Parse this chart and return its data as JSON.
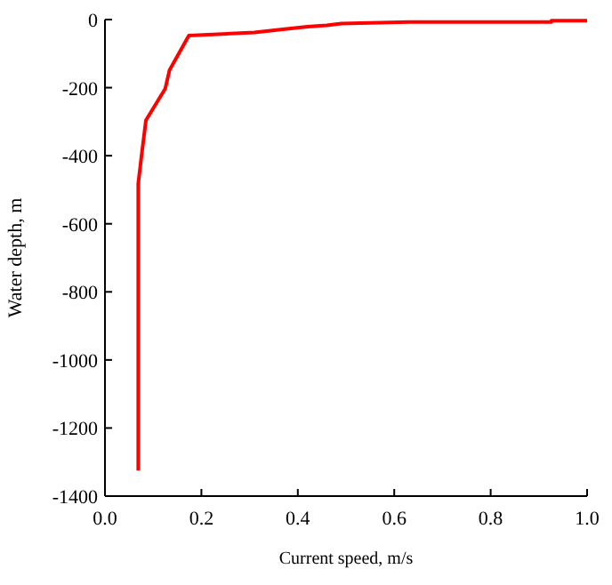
{
  "chart_data": {
    "type": "line",
    "xlabel": "Current speed, m/s",
    "ylabel": "Water depth, m",
    "xlim": [
      0,
      1
    ],
    "xticks": [
      {
        "value": 0,
        "label": "0.0"
      },
      {
        "value": 0.2,
        "label": "0.2"
      },
      {
        "value": 0.4,
        "label": "0.4"
      },
      {
        "value": 0.6,
        "label": "0.6"
      },
      {
        "value": 0.8,
        "label": "0.8"
      },
      {
        "value": 1,
        "label": "1.0"
      }
    ],
    "ylim": [
      -1400,
      0
    ],
    "yticks": [
      0,
      -200,
      -400,
      -600,
      -800,
      -1000,
      -1200,
      -1400
    ],
    "grid": false,
    "marker": "none",
    "line_style": "solid",
    "series": [
      {
        "color": "#ff0000",
        "x": [
          0.069,
          0.069,
          0.076,
          0.085,
          0.125,
          0.134,
          0.174,
          0.31,
          0.36,
          0.42,
          0.46,
          0.49,
          0.63,
          0.926,
          0.926,
          1.0
        ],
        "values": [
          -1325,
          -482,
          -398,
          -296,
          -203,
          -148,
          -47,
          -38,
          -30,
          -21,
          -17,
          -12,
          -7,
          -7,
          -3,
          -3
        ]
      }
    ]
  }
}
